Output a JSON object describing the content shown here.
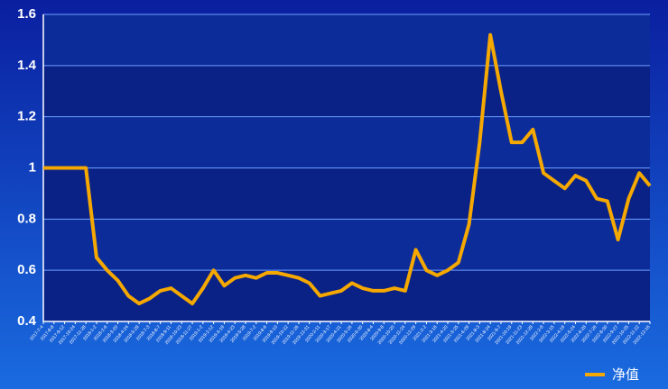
{
  "chart_data": {
    "type": "line",
    "categories": [
      "2017-7-4",
      "2017-8-8",
      "2017-9-12",
      "2017-10-24",
      "2017-11-28",
      "2018-1-2",
      "2018-2-6",
      "2018-3-20",
      "2018-4-24",
      "2018-5-29",
      "2018-7-3",
      "2018-8-7",
      "2018-9-11",
      "2018-10-23",
      "2018-11-27",
      "2019-1-2",
      "2019-2-12",
      "2019-3-19",
      "2019-4-23",
      "2019-5-28",
      "2019-7-2",
      "2019-8-6",
      "2019-9-10",
      "2019-10-22",
      "2019-11-26",
      "2019-12-31",
      "2020-2-11",
      "2020-3-17",
      "2020-4-21",
      "2020-5-26",
      "2020-6-30",
      "2020-8-4",
      "2020-9-8",
      "2020-10-20",
      "2020-11-24",
      "2020-12-29",
      "2021-2-2",
      "2021-3-16",
      "2021-4-20",
      "2021-5-25",
      "2021-6-29",
      "2021-8-3",
      "2021-8-24",
      "2021-9-7",
      "2021-10-19",
      "2021-11-23",
      "2021-12-28",
      "2022-2-8",
      "2022-3-15",
      "2022-4-19",
      "2022-5-24",
      "2022-6-28",
      "2022-7-26",
      "2022-8-30",
      "2022-9-27",
      "2022-10-25",
      "2022-11-22",
      "2022-12-16"
    ],
    "series": [
      {
        "name": "净值",
        "color": "#f5a800",
        "values": [
          1.0,
          1.0,
          1.0,
          1.0,
          1.0,
          0.65,
          0.6,
          0.56,
          0.5,
          0.47,
          0.49,
          0.52,
          0.53,
          0.5,
          0.47,
          0.53,
          0.6,
          0.54,
          0.57,
          0.58,
          0.57,
          0.59,
          0.59,
          0.58,
          0.57,
          0.55,
          0.5,
          0.51,
          0.52,
          0.55,
          0.53,
          0.52,
          0.52,
          0.53,
          0.52,
          0.68,
          0.6,
          0.58,
          0.6,
          0.63,
          0.78,
          1.1,
          1.52,
          1.3,
          1.1,
          1.1,
          1.15,
          0.98,
          0.95,
          0.92,
          0.97,
          0.95,
          0.88,
          0.87,
          0.72,
          0.88,
          0.98,
          0.93
        ]
      }
    ],
    "ylim": [
      0.4,
      1.6
    ],
    "yticks": [
      0.4,
      0.6,
      0.8,
      1,
      1.2,
      1.4,
      1.6
    ],
    "grid": true,
    "legend": "bottom-right"
  }
}
